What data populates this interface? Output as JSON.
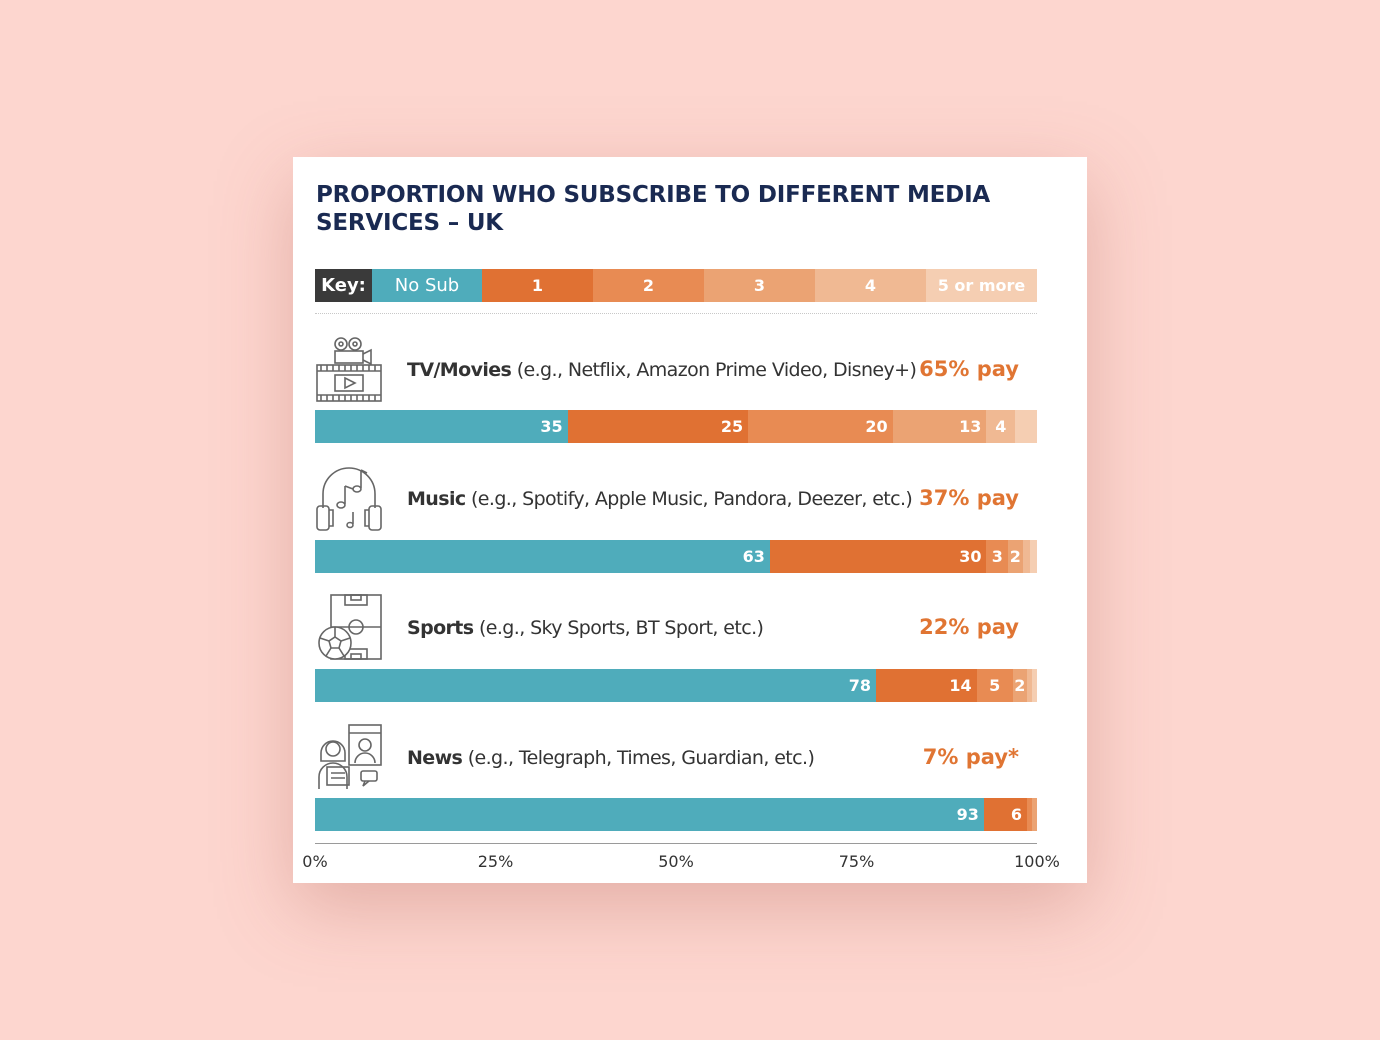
{
  "title": "PROPORTION WHO SUBSCRIBE TO DIFFERENT MEDIA SERVICES – UK",
  "key": {
    "label": "Key:",
    "items": [
      "No Sub",
      "1",
      "2",
      "3",
      "4",
      "5 or more"
    ]
  },
  "colors": [
    "#4facbb",
    "#e07133",
    "#e88b53",
    "#eba373",
    "#f0b993",
    "#f5ceb2"
  ],
  "rows": [
    {
      "icon": "film-camera-icon",
      "category": "TV/Movies",
      "examples": "(e.g., Netflix, Amazon Prime Video, Disney+)",
      "pay": "65% pay"
    },
    {
      "icon": "headphones-music-icon",
      "category": "Music",
      "examples": "(e.g., Spotify, Apple Music, Pandora, Deezer, etc.)",
      "pay": "37% pay"
    },
    {
      "icon": "football-pitch-icon",
      "category": "Sports",
      "examples": "(e.g., Sky Sports, BT Sport, etc.)",
      "pay": "22% pay"
    },
    {
      "icon": "newsreader-icon",
      "category": "News",
      "examples": "(e.g., Telegraph, Times, Guardian, etc.)",
      "pay": "7% pay*"
    }
  ],
  "chart_data": {
    "type": "bar",
    "orientation": "horizontal",
    "stacked": true,
    "title": "PROPORTION WHO SUBSCRIBE TO DIFFERENT MEDIA SERVICES – UK",
    "categories": [
      "TV/Movies",
      "Music",
      "Sports",
      "News"
    ],
    "series": [
      {
        "name": "No Sub",
        "values": [
          35,
          63,
          78,
          93
        ]
      },
      {
        "name": "1",
        "values": [
          25,
          30,
          14,
          6
        ]
      },
      {
        "name": "2",
        "values": [
          20,
          3,
          5,
          0.5
        ]
      },
      {
        "name": "3",
        "values": [
          13,
          2,
          2,
          0.5
        ]
      },
      {
        "name": "4",
        "values": [
          4,
          1,
          0.5,
          0
        ]
      },
      {
        "name": "5 or more",
        "values": [
          3,
          1,
          0.5,
          0
        ]
      }
    ],
    "labels": [
      [
        "35",
        "25",
        "20",
        "13",
        "4",
        ""
      ],
      [
        "63",
        "30",
        "3",
        "2",
        "",
        ""
      ],
      [
        "78",
        "14",
        "5",
        "2",
        "",
        ""
      ],
      [
        "93",
        "6",
        "",
        "",
        "",
        ""
      ]
    ],
    "xlim": [
      0,
      100
    ],
    "xticks": [
      "0%",
      "25%",
      "50%",
      "75%",
      "100%"
    ],
    "grid": false,
    "legend": "top"
  }
}
